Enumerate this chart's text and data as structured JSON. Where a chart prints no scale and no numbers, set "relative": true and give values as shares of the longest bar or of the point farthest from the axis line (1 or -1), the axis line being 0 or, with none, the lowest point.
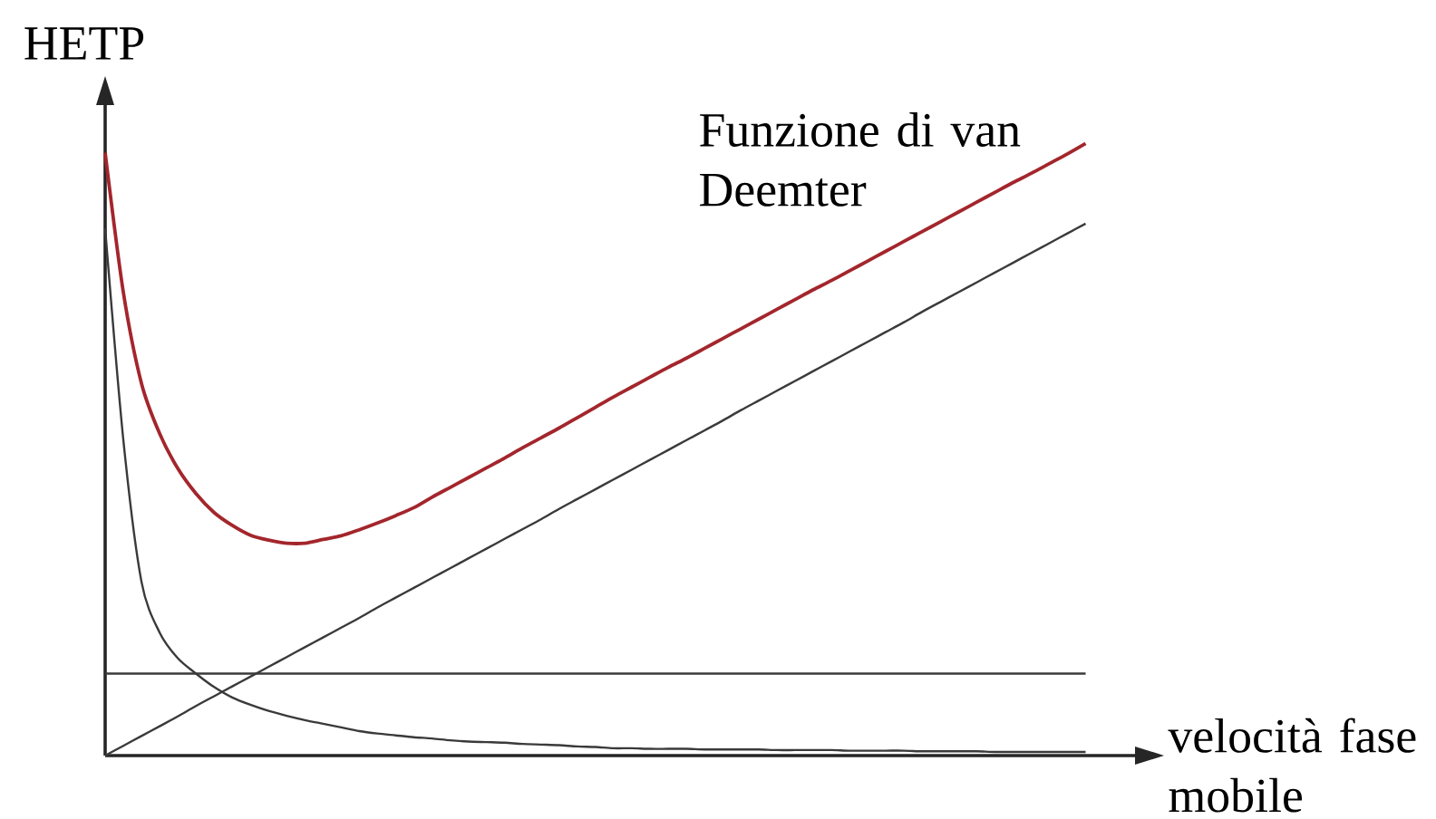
{
  "chart_data": {
    "type": "line",
    "relative": true,
    "ylabel": "HETP",
    "xlabel": "velocità fase mobile",
    "categories": [
      null,
      null,
      null,
      null,
      null,
      null,
      null,
      null,
      null,
      null,
      null,
      null,
      null,
      null,
      null,
      null,
      null,
      null,
      null,
      null,
      null,
      null,
      null,
      null,
      null,
      null,
      null,
      null,
      null,
      null,
      null,
      null,
      null,
      null,
      null,
      null,
      null,
      null,
      null,
      null,
      null,
      null,
      null,
      null,
      null,
      null,
      null,
      null,
      null,
      null,
      null,
      null,
      null,
      null,
      null
    ],
    "series": [
      {
        "name": "Funzione di van Deemter",
        "color": "#a3262c",
        "values": [
          0.985,
          0.757,
          0.608,
          0.526,
          0.469,
          0.428,
          0.397,
          0.376,
          0.36,
          0.352,
          0.347,
          0.347,
          0.353,
          0.359,
          0.369,
          0.38,
          0.392,
          0.405,
          0.422,
          0.438,
          0.454,
          0.47,
          0.486,
          0.503,
          0.519,
          0.535,
          0.552,
          0.569,
          0.586,
          0.602,
          0.618,
          0.634,
          0.649,
          0.665,
          0.681,
          0.697,
          0.713,
          0.729,
          0.745,
          0.761,
          0.776,
          0.792,
          0.808,
          0.824,
          0.84,
          0.856,
          0.872,
          0.888,
          0.904,
          0.92,
          0.936,
          0.951,
          0.967,
          0.983,
          1.0
        ]
      },
      {
        "color": "#3a3a3a",
        "values": [
          0.861,
          0.516,
          0.284,
          0.201,
          0.159,
          0.134,
          0.112,
          0.095,
          0.083,
          0.073,
          0.065,
          0.058,
          0.052,
          0.046,
          0.04,
          0.036,
          0.033,
          0.03,
          0.028,
          0.025,
          0.023,
          0.022,
          0.021,
          0.019,
          0.018,
          0.017,
          0.015,
          0.014,
          0.012,
          0.012,
          0.011,
          0.011,
          0.011,
          0.01,
          0.01,
          0.01,
          0.01,
          0.009,
          0.009,
          0.009,
          0.009,
          0.008,
          0.008,
          0.008,
          0.008,
          0.007,
          0.007,
          0.007,
          0.007,
          0.006,
          0.006,
          0.006,
          0.006,
          0.006,
          0.006
        ]
      },
      {
        "color": "#3a3a3a",
        "values": [
          0.134,
          0.134,
          0.134,
          0.134,
          0.134,
          0.134,
          0.134,
          0.134,
          0.134,
          0.134,
          0.134,
          0.134,
          0.134,
          0.134,
          0.134,
          0.134,
          0.134,
          0.134,
          0.134,
          0.134,
          0.134,
          0.134,
          0.134,
          0.134,
          0.134,
          0.134,
          0.134,
          0.134,
          0.134,
          0.134,
          0.134,
          0.134,
          0.134,
          0.134,
          0.134,
          0.134,
          0.134,
          0.134,
          0.134,
          0.134,
          0.134,
          0.134,
          0.134,
          0.134,
          0.134,
          0.134,
          0.134,
          0.134,
          0.134,
          0.134,
          0.134,
          0.134,
          0.134,
          0.134,
          0.134
        ]
      },
      {
        "color": "#3a3a3a",
        "values": [
          0,
          0.016,
          0.032,
          0.048,
          0.064,
          0.081,
          0.097,
          0.113,
          0.129,
          0.145,
          0.161,
          0.177,
          0.193,
          0.209,
          0.225,
          0.242,
          0.258,
          0.274,
          0.29,
          0.306,
          0.322,
          0.338,
          0.354,
          0.37,
          0.386,
          0.403,
          0.419,
          0.435,
          0.451,
          0.467,
          0.483,
          0.499,
          0.515,
          0.531,
          0.547,
          0.564,
          0.58,
          0.596,
          0.612,
          0.628,
          0.644,
          0.66,
          0.676,
          0.692,
          0.708,
          0.725,
          0.741,
          0.757,
          0.773,
          0.789,
          0.805,
          0.821,
          0.837,
          0.853,
          0.869
        ]
      }
    ]
  }
}
